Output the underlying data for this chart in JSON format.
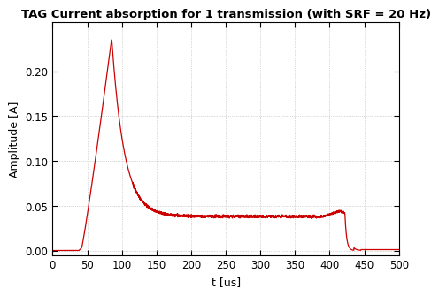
{
  "title": "TAG Current absorption for 1 transmission (with SRF = 20 Hz)",
  "xlabel": "t [us]",
  "ylabel": "Amplitude [A]",
  "xlim": [
    0,
    500
  ],
  "ylim": [
    -0.005,
    0.255
  ],
  "xticks": [
    0,
    50,
    100,
    150,
    200,
    250,
    300,
    350,
    400,
    450,
    500
  ],
  "yticks": [
    0,
    0.05,
    0.1,
    0.15,
    0.2
  ],
  "line_color": "#cc0000",
  "line_width": 0.9,
  "background_color": "#ffffff",
  "title_fontsize": 9.5,
  "axis_fontsize": 9,
  "tick_fontsize": 8.5
}
